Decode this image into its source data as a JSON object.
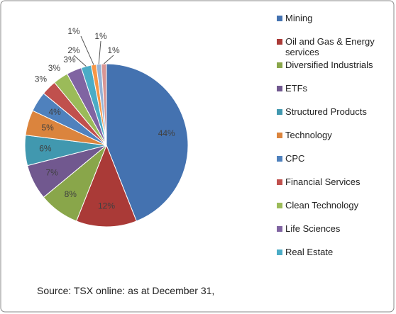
{
  "chart_data": {
    "type": "pie",
    "categories": [
      "Mining",
      "Oil and Gas & Energy services",
      "Diversified Industrials",
      "ETFs",
      "Structured Products",
      "Technology",
      "CPC",
      "Financial Services",
      "Clean Technology",
      "Life Sciences",
      "Real Estate",
      null,
      null,
      null
    ],
    "values": [
      44,
      12,
      8,
      7,
      6,
      5,
      4,
      3,
      3,
      3,
      2,
      1,
      1,
      1
    ],
    "value_labels": [
      "44%",
      "12%",
      "8%",
      "7%",
      "6%",
      "5%",
      "4%",
      "3%",
      "3%",
      "3%",
      "2%",
      "1%",
      "1%",
      "1%"
    ],
    "colors": [
      "#4472b0",
      "#aa3a37",
      "#89a64a",
      "#71588f",
      "#4198af",
      "#db843d",
      "#4f81bd",
      "#c0504d",
      "#9bbb59",
      "#8064a2",
      "#4bacc6",
      "#f79646",
      "#95b3d7",
      "#d99694"
    ],
    "source": "Source: TSX online: as at December 31,"
  }
}
